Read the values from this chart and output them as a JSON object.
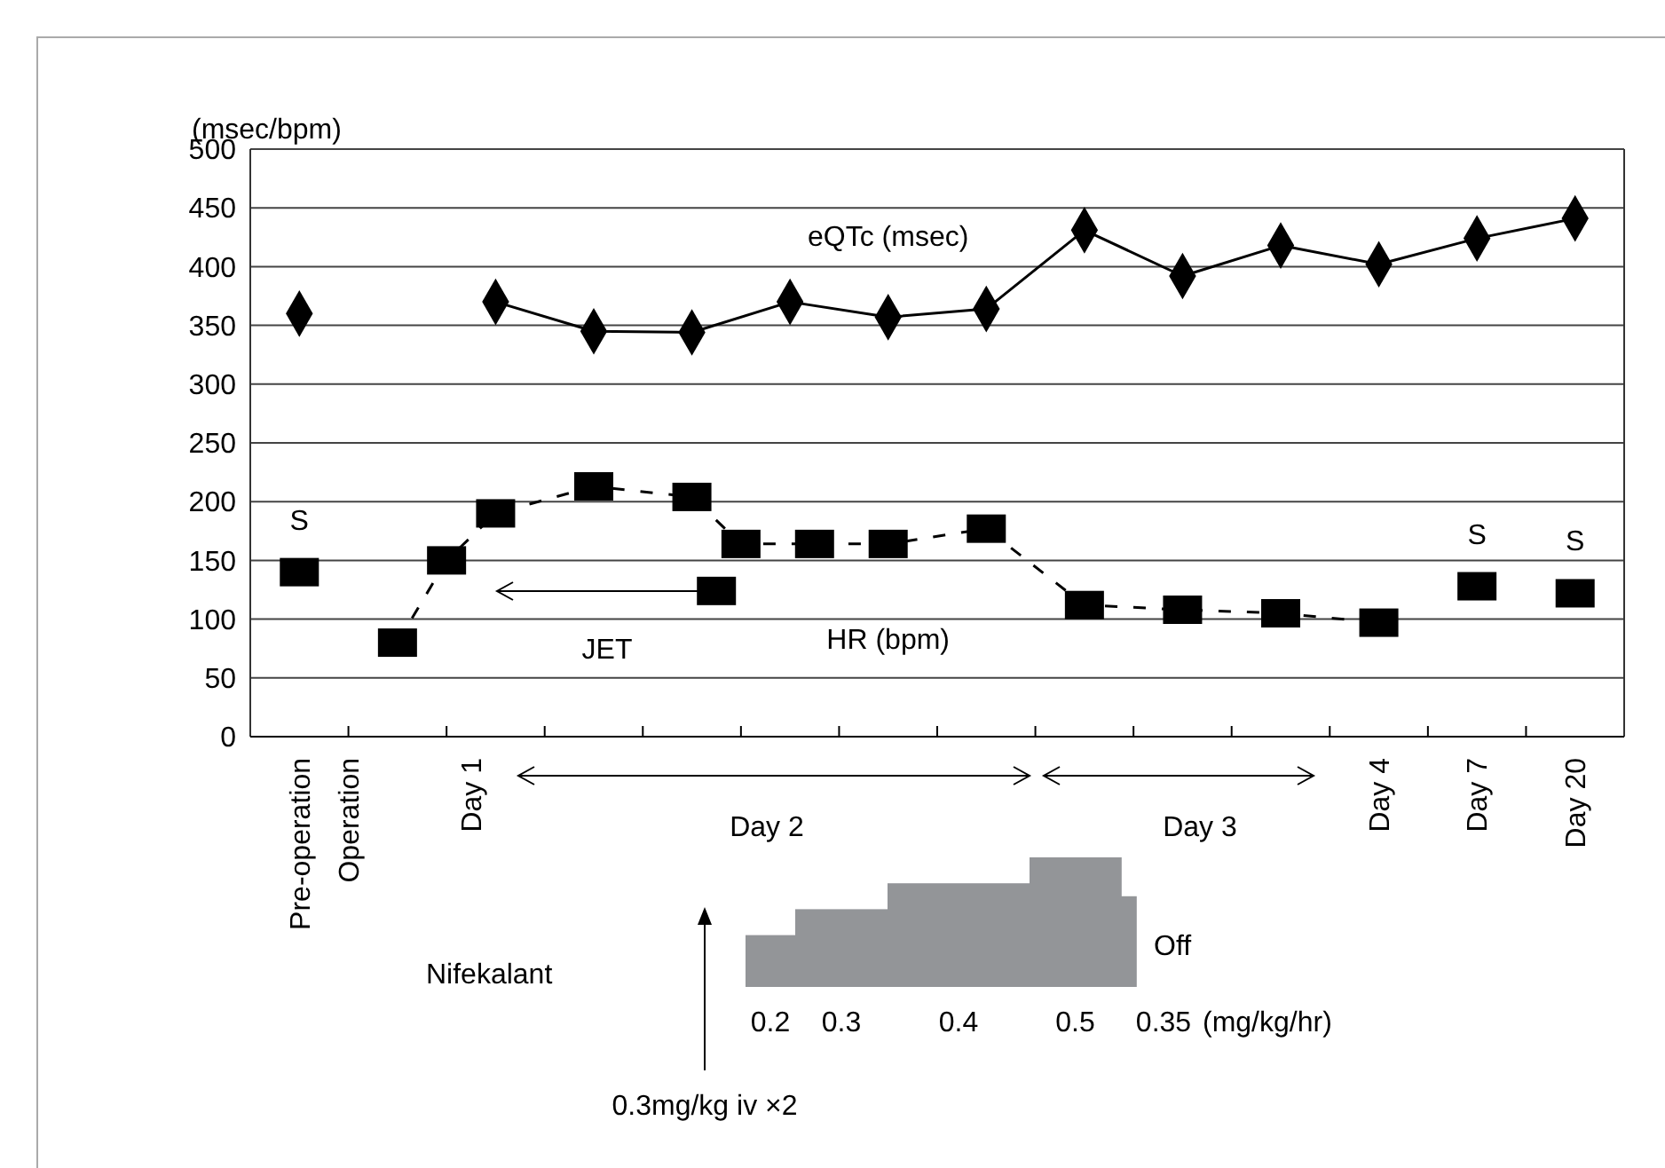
{
  "chart_data": [
    {
      "type": "line",
      "ylabel": "(msec/bpm)",
      "categories": [
        "Pre-operation",
        null,
        "Operation",
        null,
        null,
        null,
        null,
        "Day 1",
        null,
        null,
        null,
        null,
        null,
        null,
        null,
        null,
        null,
        null,
        null,
        null,
        null,
        null,
        null,
        null,
        null,
        null,
        null,
        null,
        null,
        null,
        null,
        null,
        null,
        null,
        null,
        null,
        null,
        null,
        null,
        null,
        null,
        null,
        null,
        null,
        "Day 4",
        null,
        null,
        null,
        "Day 7",
        null,
        null,
        null,
        "Day 20"
      ],
      "ylim": [
        0,
        500
      ],
      "yticks": [
        0,
        50,
        100,
        150,
        200,
        250,
        300,
        350,
        400,
        450,
        500
      ],
      "grid": "y",
      "series": [
        {
          "name": "eQTc (msec)",
          "color": "#000000",
          "marker": "diamond",
          "line_style": "solid",
          "values": [
            null,
            null,
            null,
            null,
            null,
            null,
            null,
            null,
            370,
            null,
            null,
            null,
            345,
            null,
            null,
            null,
            344,
            null,
            null,
            null,
            370,
            null,
            null,
            null,
            357,
            null,
            null,
            null,
            364,
            null,
            null,
            null,
            431,
            null,
            null,
            null,
            392,
            null,
            null,
            null,
            418,
            null,
            null,
            null,
            402,
            null,
            null,
            null,
            424,
            null,
            null,
            null,
            441
          ]
        },
        {
          "type": "scatter",
          "color": "#000000",
          "marker": "diamond",
          "values": [
            360,
            null,
            null,
            null,
            null,
            null,
            null,
            null,
            null,
            null,
            null,
            null,
            null,
            null,
            null,
            null,
            null,
            null,
            null,
            null,
            null,
            null,
            null,
            null,
            null,
            null,
            null,
            null,
            null,
            null,
            null,
            null,
            null,
            null,
            null,
            null,
            null,
            null,
            null,
            null,
            null,
            null,
            null,
            null,
            null,
            null,
            null,
            null,
            null,
            null,
            null,
            null,
            null
          ]
        },
        {
          "name": "HR (bpm)",
          "color": "#000000",
          "marker": "square",
          "line_style": "dashed",
          "values": [
            null,
            null,
            null,
            null,
            80,
            null,
            150,
            null,
            190,
            null,
            null,
            null,
            213,
            null,
            null,
            null,
            204,
            null,
            164,
            null,
            null,
            164,
            null,
            null,
            164,
            null,
            null,
            null,
            177,
            null,
            null,
            null,
            112,
            null,
            null,
            null,
            108,
            null,
            null,
            null,
            105,
            null,
            null,
            null,
            97,
            null,
            null,
            null,
            null,
            null,
            null,
            null,
            null
          ]
        },
        {
          "type": "scatter",
          "color": "#000000",
          "marker": "square",
          "values": [
            140,
            null,
            null,
            null,
            null,
            null,
            null,
            null,
            null,
            null,
            null,
            null,
            null,
            null,
            null,
            null,
            null,
            124,
            null,
            null,
            null,
            null,
            null,
            null,
            null,
            null,
            null,
            null,
            null,
            null,
            null,
            null,
            null,
            null,
            null,
            null,
            null,
            null,
            null,
            null,
            null,
            null,
            null,
            null,
            null,
            null,
            null,
            null,
            128,
            null,
            null,
            null,
            122
          ],
          "value_labels": [
            "S",
            null,
            null,
            null,
            null,
            null,
            null,
            null,
            null,
            null,
            null,
            null,
            null,
            null,
            null,
            null,
            null,
            null,
            null,
            null,
            null,
            null,
            null,
            null,
            null,
            null,
            null,
            null,
            null,
            null,
            null,
            null,
            null,
            null,
            null,
            null,
            null,
            null,
            null,
            null,
            null,
            null,
            null,
            null,
            null,
            null,
            null,
            null,
            "S",
            null,
            null,
            null,
            "S"
          ]
        }
      ],
      "annotations": [
        "JET",
        "Day 2",
        "Day 3"
      ]
    },
    {
      "type": "other",
      "ylabel": "Nifekalant",
      "color": "#939598",
      "values": [
        0.2,
        0.3,
        0.4,
        0.5,
        0.35
      ],
      "data_labels": true,
      "annotations": [
        "(mg/kg/hr)",
        "Off",
        "0.3mg/kg iv ×2"
      ]
    }
  ]
}
